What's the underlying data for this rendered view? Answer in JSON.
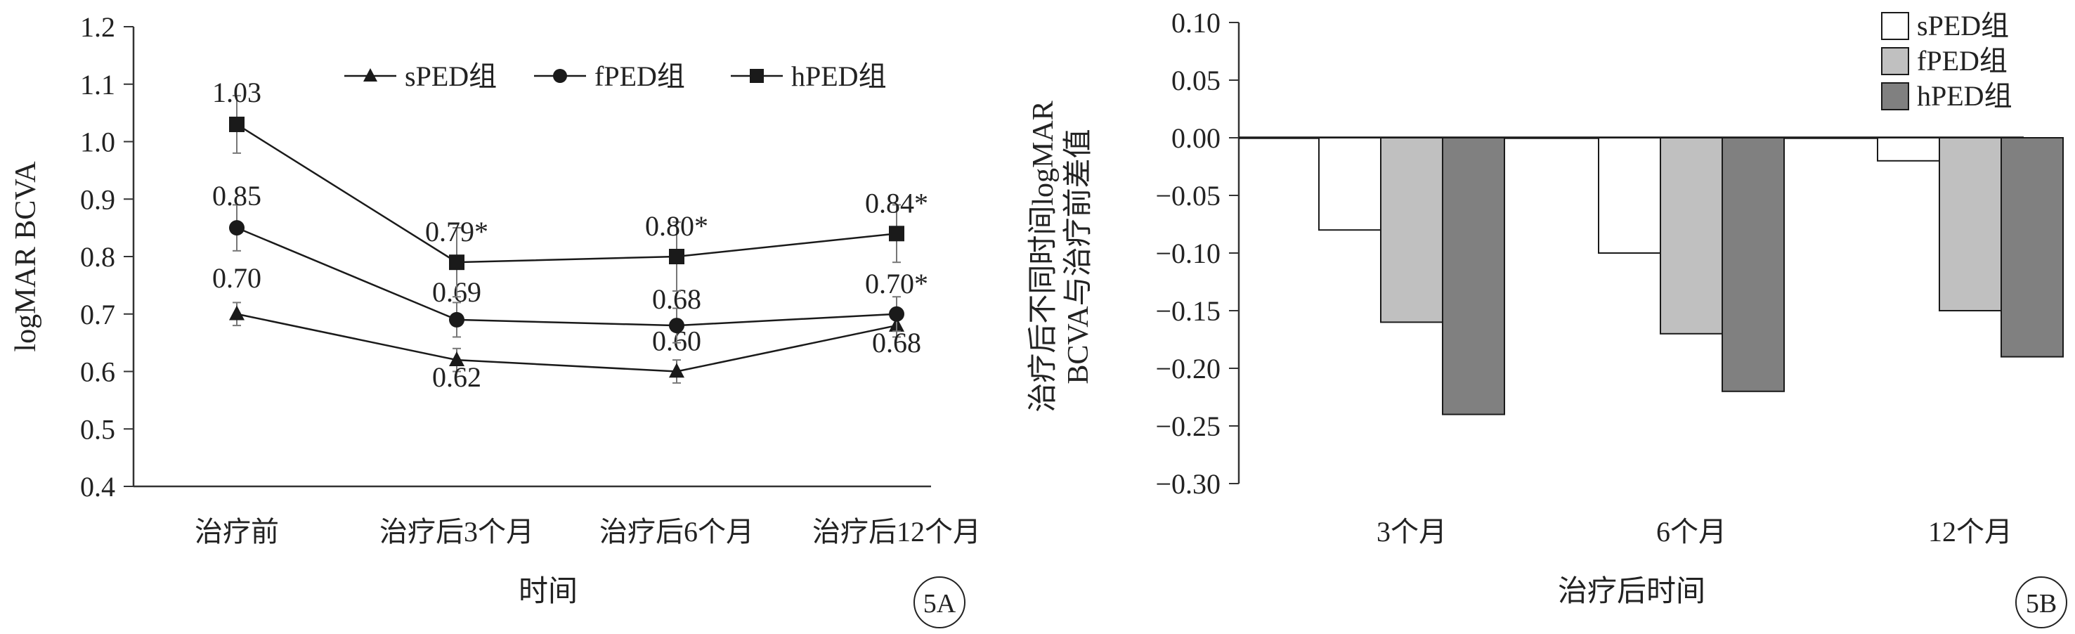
{
  "chart_data": [
    {
      "panel": "5A",
      "type": "line",
      "title": "",
      "xlabel": "时间",
      "ylabel": "logMAR BCVA",
      "ylim": [
        0.4,
        1.2
      ],
      "yticks": [
        "0.4",
        "0.5",
        "0.6",
        "0.7",
        "0.8",
        "0.9",
        "1.0",
        "1.1",
        "1.2"
      ],
      "categories": [
        "治疗前",
        "治疗后3个月",
        "治疗后6个月",
        "治疗后12个月"
      ],
      "legend_position": "top-right",
      "series": [
        {
          "name": "sPED组",
          "marker": "triangle",
          "values": [
            0.7,
            0.62,
            0.6,
            0.68
          ],
          "errors": [
            0.02,
            0.02,
            0.02,
            0.02
          ],
          "labels": [
            "0.70",
            "0.62",
            "0.60",
            "0.68"
          ]
        },
        {
          "name": "fPED组",
          "marker": "circle",
          "values": [
            0.85,
            0.69,
            0.68,
            0.7
          ],
          "errors": [
            0.04,
            0.03,
            0.03,
            0.03
          ],
          "labels": [
            "0.85",
            "0.69",
            "0.68",
            "0.70*"
          ]
        },
        {
          "name": "hPED组",
          "marker": "square",
          "values": [
            1.03,
            0.79,
            0.8,
            0.84
          ],
          "errors": [
            0.05,
            0.06,
            0.06,
            0.05
          ],
          "labels": [
            "1.03",
            "0.79*",
            "0.80*",
            "0.84*"
          ]
        }
      ],
      "grid": false
    },
    {
      "panel": "5B",
      "type": "bar",
      "title": "",
      "xlabel": "治疗后时间",
      "ylabel_lines": [
        "治疗后不同时间logMAR",
        "BCVA与治疗前差值"
      ],
      "ylim": [
        -0.3,
        0.1
      ],
      "yticks": [
        "−0.30",
        "−0.25",
        "−0.20",
        "−0.15",
        "−0.10",
        "−0.05",
        "0.00",
        "0.05",
        "0.10"
      ],
      "categories": [
        "3个月",
        "6个月",
        "12个月"
      ],
      "legend_position": "top-right",
      "series": [
        {
          "name": "sPED组",
          "color": "#ffffff",
          "values": [
            -0.08,
            -0.1,
            -0.02
          ]
        },
        {
          "name": "fPED组",
          "color": "#c0c0c0",
          "values": [
            -0.16,
            -0.17,
            -0.15
          ]
        },
        {
          "name": "hPED组",
          "color": "#808080",
          "values": [
            -0.24,
            -0.22,
            -0.19
          ]
        }
      ],
      "grid": false
    }
  ]
}
